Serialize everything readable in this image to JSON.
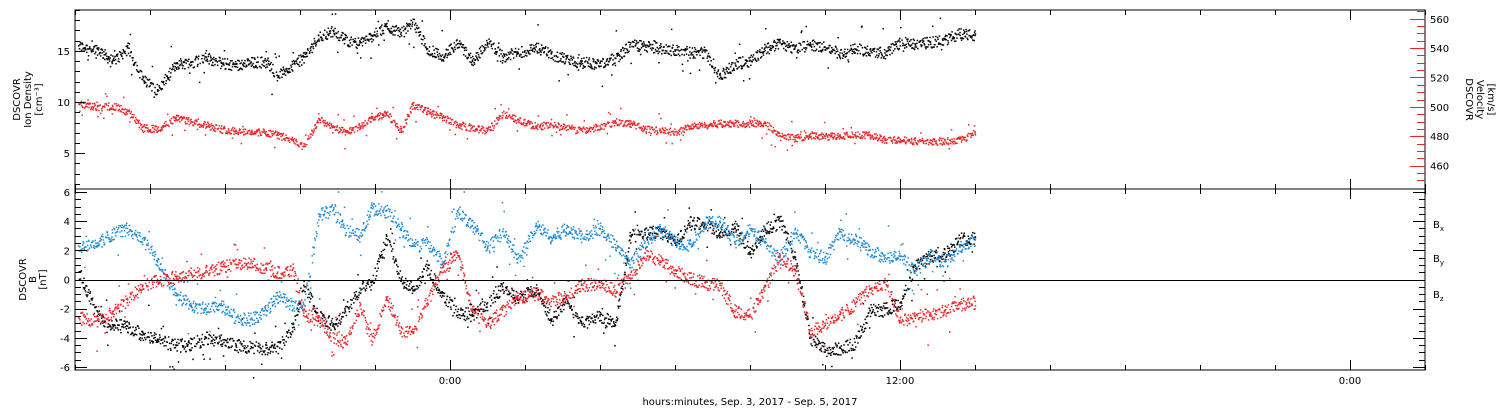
{
  "colors": {
    "black": "#000000",
    "red": "#e8262a",
    "blue": "#1d8ad6"
  },
  "xaxis": {
    "label": "hours:minutes, Sep.  3, 2017 - Sep.  5, 2017",
    "tick_labels": [
      "0:00",
      "12:00",
      "0:00"
    ],
    "range_hours": [
      -10,
      26
    ],
    "major_tick_hours": [
      0,
      12,
      24
    ],
    "minor_tick_step_hours": 2
  },
  "panel1": {
    "ylabel_left": [
      "DSCOVR",
      "Ion  Density",
      "[cm⁻³]"
    ],
    "ylabel_right": [
      "DSCOVR",
      "Velocity",
      "[km/s]"
    ],
    "left_ticks": [
      "5",
      "10",
      "15"
    ],
    "right_ticks": [
      "460",
      "480",
      "500",
      "520",
      "540",
      "560"
    ]
  },
  "panel2": {
    "ylabel_left": [
      "DSCOVR",
      "B",
      "[nT]"
    ],
    "ticks": [
      "-6",
      "-4",
      "-2",
      "0",
      "2",
      "4",
      "6"
    ],
    "legend": [
      {
        "label": "B",
        "sub": "x",
        "color": "#000000"
      },
      {
        "label": "B",
        "sub": "y",
        "color": "#1d8ad6"
      },
      {
        "label": "B",
        "sub": "z",
        "color": "#e8262a"
      }
    ]
  },
  "chart_data": [
    {
      "type": "scatter",
      "x_units": "hours from 2017-09-04 0:00",
      "xlim": [
        -10,
        26
      ],
      "left_axis": {
        "label": "Ion Density [cm^-3]",
        "ylim": [
          1.5,
          19
        ]
      },
      "right_axis": {
        "label": "Velocity [km/s]",
        "ylim": [
          444,
          566
        ]
      },
      "series": [
        {
          "color": "#000000",
          "axis": "left",
          "x": [
            -9.9,
            -9.4,
            -9,
            -8.6,
            -8.2,
            -7.8,
            -7.3,
            -6.9,
            -6.5,
            -6.1,
            -5.7,
            -5.3,
            -4.9,
            -4.6,
            -4.2,
            -3.9,
            -3.5,
            -3.1,
            -2.8,
            -2.4,
            -2.1,
            -1.7,
            -1.3,
            -1,
            -0.6,
            -0.2,
            0.2,
            0.6,
            1,
            1.4,
            1.8,
            2.3,
            2.7,
            3.1,
            3.5,
            4,
            4.4,
            4.8,
            5.2,
            5.6,
            6,
            6.4,
            6.8,
            7.2,
            7.6,
            8,
            8.4,
            8.8,
            9.2,
            9.6,
            10,
            10.4,
            10.8,
            11.2,
            11.6,
            12,
            12.4,
            12.8,
            13.2,
            13.6,
            14
          ],
          "y": [
            15.5,
            15.2,
            14,
            15.3,
            12.2,
            11.2,
            13.8,
            13.9,
            14.4,
            13.8,
            13.7,
            13.9,
            14,
            12.6,
            13.7,
            14.4,
            16.5,
            17,
            16.1,
            15.8,
            16.5,
            17.4,
            16.8,
            17.8,
            15.2,
            14.6,
            15.7,
            14.1,
            15.8,
            14.5,
            14.9,
            15.4,
            14.7,
            14.2,
            13.9,
            13.8,
            14.3,
            15.6,
            15.5,
            15.3,
            15.1,
            14.9,
            14.9,
            12.6,
            13.8,
            14.1,
            15.3,
            15.8,
            15.3,
            15.6,
            15.4,
            14.8,
            15.2,
            15.1,
            14.8,
            15.9,
            15.7,
            15.9,
            16.1,
            16.8,
            16.5
          ]
        },
        {
          "color": "#e8262a",
          "axis": "right",
          "x": [
            -9.9,
            -9.4,
            -9,
            -8.6,
            -8.2,
            -7.8,
            -7.3,
            -6.9,
            -6.5,
            -6.1,
            -5.7,
            -5.3,
            -4.9,
            -4.6,
            -4.2,
            -3.9,
            -3.5,
            -3.1,
            -2.8,
            -2.4,
            -2.1,
            -1.7,
            -1.3,
            -1,
            -0.6,
            -0.2,
            0.2,
            0.6,
            1,
            1.4,
            1.8,
            2.3,
            2.7,
            3.1,
            3.5,
            4,
            4.4,
            4.8,
            5.2,
            5.6,
            6,
            6.4,
            6.8,
            7.2,
            7.6,
            8,
            8.4,
            8.8,
            9.2,
            9.6,
            10,
            10.4,
            10.8,
            11.2,
            11.6,
            12,
            12.4,
            12.8,
            13.2,
            13.6,
            14
          ],
          "y": [
            502,
            500,
            501,
            497,
            486,
            485,
            493,
            490,
            488,
            485,
            484,
            483,
            483,
            481,
            478,
            473,
            492,
            486,
            483,
            487,
            492,
            496,
            484,
            502,
            497,
            493,
            488,
            486,
            484,
            496,
            491,
            487,
            488,
            486,
            484,
            487,
            490,
            489,
            485,
            484,
            483,
            487,
            488,
            489,
            489,
            489,
            489,
            480,
            479,
            481,
            480,
            481,
            481,
            481,
            478,
            478,
            477,
            477,
            477,
            478,
            483
          ]
        }
      ]
    },
    {
      "type": "scatter",
      "x_units": "hours from 2017-09-04 0:00",
      "xlim": [
        -10,
        26
      ],
      "ylabel": "B [nT]",
      "ylim": [
        -6.2,
        6.2
      ],
      "zero_line": true,
      "series": [
        {
          "name": "Bx",
          "color": "#000000",
          "x": [
            -9.9,
            -9.4,
            -9,
            -8.6,
            -8.2,
            -7.8,
            -7.3,
            -6.9,
            -6.5,
            -6.1,
            -5.7,
            -5.3,
            -4.9,
            -4.6,
            -4.2,
            -3.9,
            -3.5,
            -3.1,
            -2.8,
            -2.4,
            -2.1,
            -1.7,
            -1.3,
            -1,
            -0.6,
            -0.2,
            0.2,
            0.6,
            1,
            1.4,
            1.8,
            2.3,
            2.7,
            3.1,
            3.5,
            4,
            4.4,
            4.8,
            5.2,
            5.6,
            6,
            6.4,
            6.8,
            7.2,
            7.6,
            8,
            8.4,
            8.8,
            9.2,
            9.6,
            10,
            10.4,
            10.8,
            11.2,
            11.6,
            12,
            12.4,
            12.8,
            13.2,
            13.6,
            14
          ],
          "y": [
            0.5,
            -2.5,
            -3.1,
            -3.2,
            -3.8,
            -4.1,
            -4.5,
            -4.4,
            -4,
            -4.2,
            -4.5,
            -4.6,
            -4.7,
            -4.6,
            -3.3,
            -0.4,
            -2.5,
            -3.1,
            -2.1,
            -0.6,
            -0.2,
            2.8,
            -0.1,
            -0.5,
            0.8,
            -1.1,
            -2.2,
            -2.4,
            -1.6,
            -0.5,
            -1.3,
            -0.6,
            -2.8,
            -1.3,
            -3,
            -2.5,
            -3.1,
            3,
            3.2,
            3.3,
            2.5,
            3.9,
            3.8,
            3.2,
            3.6,
            1.9,
            3.5,
            4,
            1.5,
            -4,
            -4.8,
            -4.7,
            -4.3,
            -2.1,
            -2,
            -1.6,
            1,
            1.6,
            1.8,
            2.8,
            2.9
          ]
        },
        {
          "name": "By",
          "color": "#1d8ad6",
          "x": [
            -9.9,
            -9.4,
            -9,
            -8.6,
            -8.2,
            -7.8,
            -7.3,
            -6.9,
            -6.5,
            -6.1,
            -5.7,
            -5.3,
            -4.9,
            -4.6,
            -4.2,
            -3.9,
            -3.5,
            -3.1,
            -2.8,
            -2.4,
            -2.1,
            -1.7,
            -1.3,
            -1,
            -0.6,
            -0.2,
            0.2,
            0.6,
            1,
            1.4,
            1.8,
            2.3,
            2.7,
            3.1,
            3.5,
            4,
            4.4,
            4.8,
            5.2,
            5.6,
            6,
            6.4,
            6.8,
            7.2,
            7.6,
            8,
            8.4,
            8.8,
            9.2,
            9.6,
            10,
            10.4,
            10.8,
            11.2,
            11.6,
            12,
            12.4,
            12.8,
            13.2,
            13.6,
            14
          ],
          "y": [
            2.3,
            2.5,
            3.2,
            3.5,
            2.8,
            1.2,
            -1.1,
            -1.8,
            -2,
            -1.8,
            -2.6,
            -2.7,
            -2.1,
            -1.1,
            -1.8,
            -1.7,
            4.5,
            4.8,
            3.5,
            3,
            4.9,
            4.7,
            3.5,
            2.3,
            2.5,
            1.2,
            4.7,
            3.7,
            2.2,
            3.3,
            1.4,
            3.7,
            2.9,
            3.5,
            3,
            3.5,
            2.4,
            1,
            2.6,
            3.5,
            2.6,
            2.4,
            3.9,
            4,
            2.6,
            3.5,
            2.5,
            1.5,
            3.4,
            1.9,
            1.5,
            3.3,
            2.7,
            2,
            1.5,
            1.6,
            0.6,
            1.7,
            1.2,
            2.2,
            2.7
          ]
        },
        {
          "name": "Bz",
          "color": "#e8262a",
          "x": [
            -9.9,
            -9.4,
            -9,
            -8.6,
            -8.2,
            -7.8,
            -7.3,
            -6.9,
            -6.5,
            -6.1,
            -5.7,
            -5.3,
            -4.9,
            -4.6,
            -4.2,
            -3.9,
            -3.5,
            -3.1,
            -2.8,
            -2.4,
            -2.1,
            -1.7,
            -1.3,
            -1,
            -0.6,
            -0.2,
            0.2,
            0.6,
            1,
            1.4,
            1.8,
            2.3,
            2.7,
            3.1,
            3.5,
            4,
            4.4,
            4.8,
            5.2,
            5.6,
            6,
            6.4,
            6.8,
            7.2,
            7.6,
            8,
            8.4,
            8.8,
            9.2,
            9.6,
            10,
            10.4,
            10.8,
            11.2,
            11.6,
            12,
            12.4,
            12.8,
            13.2,
            13.6,
            14
          ],
          "y": [
            -2.6,
            -2.8,
            -2.2,
            -1.3,
            -0.5,
            0,
            0.2,
            0.4,
            0.6,
            0.9,
            1,
            1.2,
            0.8,
            0.5,
            0.7,
            -2.3,
            -2.8,
            -4,
            -4.3,
            -1.8,
            -4.2,
            -1.2,
            -3.6,
            -3.4,
            -1.4,
            0.8,
            1.8,
            -2.2,
            -3,
            -2.1,
            -1.3,
            -0.9,
            -1.5,
            -1.1,
            -0.4,
            -0.2,
            -0.7,
            0.1,
            1.8,
            1.3,
            0.6,
            0.1,
            -0.2,
            -0.4,
            -2.2,
            -2.4,
            -0.5,
            1.6,
            0.6,
            -3.5,
            -3,
            -2.4,
            -1.6,
            -0.6,
            -0.2,
            -2.8,
            -2.5,
            -2.4,
            -2.1,
            -1.7,
            -1.5
          ]
        }
      ]
    }
  ]
}
